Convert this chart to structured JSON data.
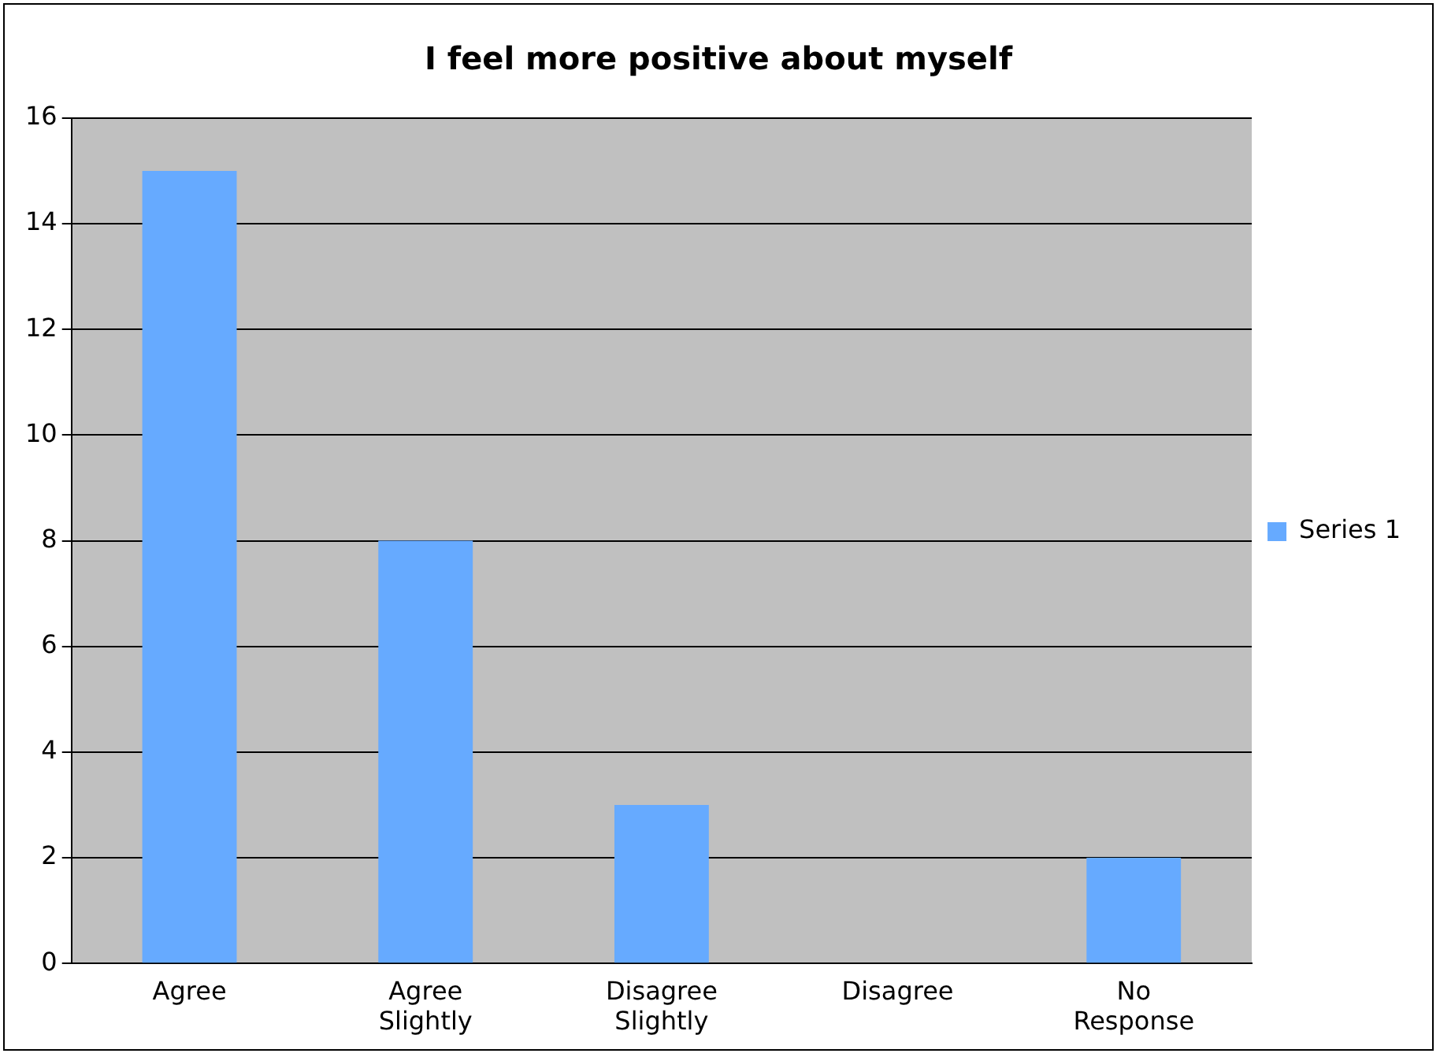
{
  "chart_data": {
    "type": "bar",
    "title": "I feel more positive about myself",
    "categories": [
      "Agree",
      "Agree Slightly",
      "Disagree Slightly",
      "Disagree",
      "No Response"
    ],
    "series": [
      {
        "name": "Series 1",
        "color": "#66aaff",
        "values": [
          15,
          8,
          3,
          0,
          2
        ]
      }
    ],
    "ylim": [
      0,
      16
    ],
    "yticks": [
      0,
      2,
      4,
      6,
      8,
      10,
      12,
      14,
      16
    ],
    "grid": "y",
    "legend": "right"
  }
}
